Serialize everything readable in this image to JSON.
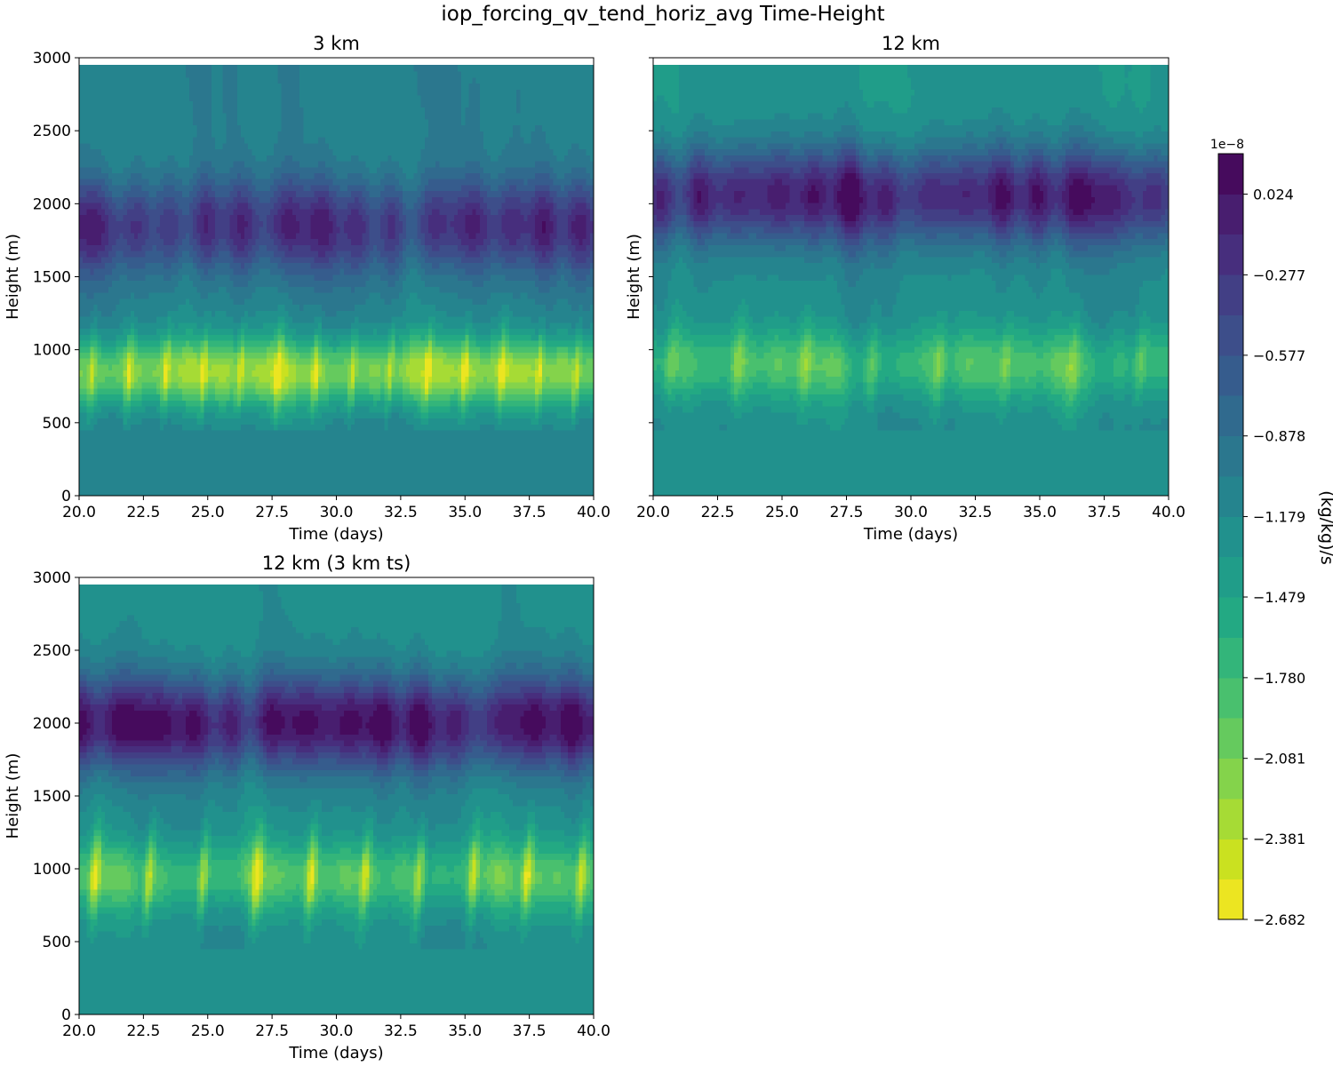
{
  "figure": {
    "suptitle": "iop_forcing_qv_tend_horiz_avg Time-Height"
  },
  "colorbar": {
    "label": "(kg/kg)/s",
    "offset_text": "1e−8",
    "tick_labels": [
      "0.024",
      "−0.277",
      "−0.577",
      "−0.878",
      "−1.179",
      "−1.479",
      "−1.780",
      "−2.081",
      "−2.381",
      "−2.682"
    ],
    "tick_values": [
      0.024,
      -0.277,
      -0.577,
      -0.878,
      -1.179,
      -1.479,
      -1.78,
      -2.081,
      -2.381,
      -2.682
    ],
    "range": [
      -2.682,
      0.175
    ],
    "levels": 19,
    "colors": [
      "#fde725",
      "#d2e21b",
      "#a5db36",
      "#7ad151",
      "#54c568",
      "#35b779",
      "#22a884",
      "#1f988b",
      "#23898e",
      "#2a788e",
      "#31688e",
      "#39568c",
      "#414487",
      "#472f7d",
      "#481a6c",
      "#440154"
    ]
  },
  "chart_data": [
    {
      "type": "heatmap",
      "title": "3 km",
      "xlabel": "Time (days)",
      "ylabel": "Height (m)",
      "xlim": [
        20,
        40
      ],
      "ylim": [
        0,
        3000
      ],
      "data_top": 2950,
      "x_ticks": [
        20,
        22.5,
        25,
        27.5,
        30,
        32.5,
        35,
        37.5,
        40
      ],
      "x_tick_labels": [
        "20.0",
        "22.5",
        "25.0",
        "27.5",
        "30.0",
        "32.5",
        "35.0",
        "37.5",
        "40.0"
      ],
      "y_ticks": [
        0,
        500,
        1000,
        1500,
        2000,
        2500,
        3000
      ],
      "y_tick_labels": [
        "0",
        "500",
        "1000",
        "1500",
        "2000",
        "2500",
        "3000"
      ],
      "show_y_tick_labels": true,
      "units": "1e-8 (kg/kg)/s",
      "features": {
        "min_band_height_m": 850,
        "min_band_value": -2.2,
        "max_band_height_m": 1850,
        "max_band_value": -0.25,
        "surface_value": -1.1,
        "upper_value": -1.05,
        "spike_period_days": 1.45,
        "spike_strength": 0.45
      }
    },
    {
      "type": "heatmap",
      "title": "12 km",
      "xlabel": "Time (days)",
      "ylabel": "Height (m)",
      "xlim": [
        20,
        40
      ],
      "ylim": [
        0,
        3000
      ],
      "data_top": 2950,
      "x_ticks": [
        20,
        22.5,
        25,
        27.5,
        30,
        32.5,
        35,
        37.5,
        40
      ],
      "x_tick_labels": [
        "20.0",
        "22.5",
        "25.0",
        "27.5",
        "30.0",
        "32.5",
        "35.0",
        "37.5",
        "40.0"
      ],
      "y_ticks": [
        0,
        500,
        1000,
        1500,
        2000,
        2500,
        3000
      ],
      "y_tick_labels": [
        "0",
        "500",
        "1000",
        "1500",
        "2000",
        "2500",
        "3000"
      ],
      "show_y_tick_labels": false,
      "units": "1e-8 (kg/kg)/s",
      "features": {
        "min_band_height_m": 900,
        "min_band_value": -1.8,
        "max_band_height_m": 2050,
        "max_band_value": -0.1,
        "surface_value": -1.2,
        "upper_value": -1.3,
        "spike_period_days": 2.6,
        "spike_strength": 0.35
      }
    },
    {
      "type": "heatmap",
      "title": "12 km (3 km ts)",
      "xlabel": "Time (days)",
      "ylabel": "Height (m)",
      "xlim": [
        20,
        40
      ],
      "ylim": [
        0,
        3000
      ],
      "data_top": 2950,
      "x_ticks": [
        20,
        22.5,
        25,
        27.5,
        30,
        32.5,
        35,
        37.5,
        40
      ],
      "x_tick_labels": [
        "20.0",
        "22.5",
        "25.0",
        "27.5",
        "30.0",
        "32.5",
        "35.0",
        "37.5",
        "40.0"
      ],
      "y_ticks": [
        0,
        500,
        1000,
        1500,
        2000,
        2500,
        3000
      ],
      "y_tick_labels": [
        "0",
        "500",
        "1000",
        "1500",
        "2000",
        "2500",
        "3000"
      ],
      "show_y_tick_labels": true,
      "units": "1e-8 (kg/kg)/s",
      "features": {
        "min_band_height_m": 950,
        "min_band_value": -1.85,
        "max_band_height_m": 2000,
        "max_band_value": 0.0,
        "surface_value": -1.2,
        "upper_value": -1.25,
        "spike_period_days": 2.1,
        "spike_strength": 0.7
      }
    }
  ]
}
